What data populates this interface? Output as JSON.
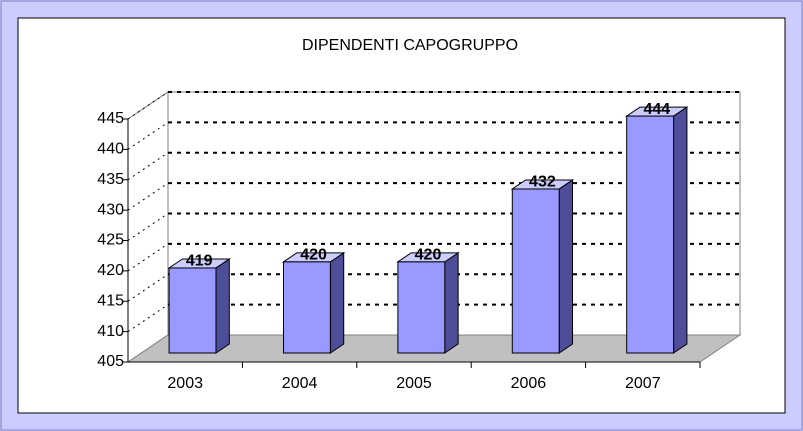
{
  "chart_data": {
    "type": "bar3d",
    "title": "DIPENDENTI CAPOGRUPPO",
    "categories": [
      "2003",
      "2004",
      "2005",
      "2006",
      "2007"
    ],
    "values": [
      419,
      420,
      420,
      432,
      444
    ],
    "color": "#9999ff",
    "ylim": [
      405,
      445
    ],
    "yticks": [
      405,
      410,
      415,
      420,
      425,
      430,
      435,
      440,
      445
    ],
    "grid": true
  }
}
